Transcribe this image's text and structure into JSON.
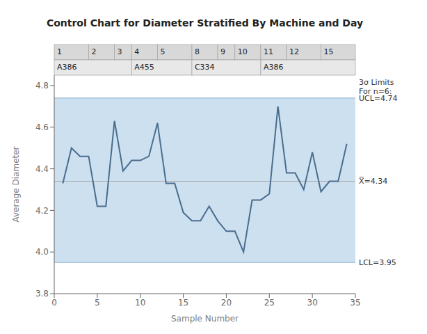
{
  "chart_data": {
    "type": "line",
    "title": "Control Chart for Diameter Stratified By Machine and Day",
    "x_label": "Sample Number",
    "y_label": "Average Diameter",
    "x": [
      1,
      2,
      3,
      4,
      5,
      6,
      7,
      8,
      9,
      10,
      11,
      12,
      13,
      14,
      15,
      16,
      17,
      18,
      19,
      20,
      21,
      22,
      23,
      24,
      25,
      26,
      27,
      28,
      29,
      30,
      31,
      32,
      33,
      34
    ],
    "values": [
      4.33,
      4.5,
      4.46,
      4.46,
      4.22,
      4.22,
      4.63,
      4.39,
      4.44,
      4.44,
      4.46,
      4.62,
      4.33,
      4.33,
      4.19,
      4.15,
      4.15,
      4.22,
      4.15,
      4.1,
      4.1,
      4.0,
      4.25,
      4.25,
      4.28,
      4.7,
      4.38,
      4.38,
      4.3,
      4.48,
      4.29,
      4.34,
      4.34,
      4.52
    ],
    "color": "#4a6d8c",
    "xlim": [
      0,
      35
    ],
    "xticks": [
      0,
      5,
      10,
      15,
      20,
      25,
      30,
      35
    ],
    "ylim": [
      3.8,
      4.85
    ],
    "yticks": [
      3.8,
      {
        "value": 4.0,
        "label": "4.0"
      },
      4.2,
      4.4,
      4.6,
      4.8
    ],
    "grid": false,
    "control_limits": {
      "ucl": 4.74,
      "lcl": 3.95,
      "mean": 4.34,
      "color": "#cce0f0",
      "ucl_label": "UCL=4.74",
      "lcl_label": "LCL=3.95",
      "mean_label": "X̅=4.34",
      "limits_label": "3σ Limits\nFor n=6:"
    },
    "day_bands": [
      {
        "label": "1",
        "start": 0,
        "end": 4
      },
      {
        "label": "2",
        "start": 4,
        "end": 7
      },
      {
        "label": "3",
        "start": 7,
        "end": 9
      },
      {
        "label": "4",
        "start": 9,
        "end": 12
      },
      {
        "label": "5",
        "start": 12,
        "end": 16
      },
      {
        "label": "8",
        "start": 16,
        "end": 19
      },
      {
        "label": "9",
        "start": 19,
        "end": 21
      },
      {
        "label": "10",
        "start": 21,
        "end": 24
      },
      {
        "label": "11",
        "start": 24,
        "end": 27
      },
      {
        "label": "12",
        "start": 27,
        "end": 31
      },
      {
        "label": "15",
        "start": 31,
        "end": 35
      }
    ],
    "machine_bands": [
      {
        "label": "A386",
        "start": 0,
        "end": 9
      },
      {
        "label": "A455",
        "start": 9,
        "end": 16
      },
      {
        "label": "C334",
        "start": 16,
        "end": 24
      },
      {
        "label": "A386",
        "start": 24,
        "end": 35
      }
    ]
  }
}
